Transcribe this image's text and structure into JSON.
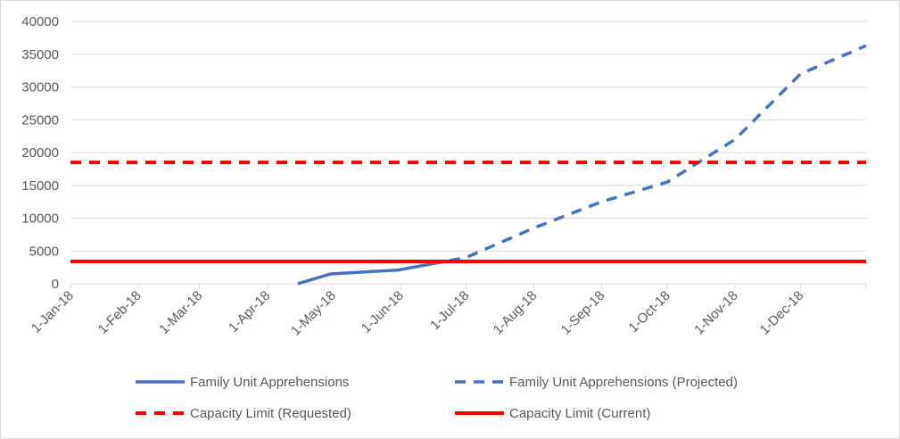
{
  "chart_data": {
    "type": "line",
    "title": "",
    "xlabel": "",
    "ylabel": "",
    "ylim": [
      0,
      40000
    ],
    "yticks": [
      0,
      5000,
      10000,
      15000,
      20000,
      25000,
      30000,
      35000,
      40000
    ],
    "x_range": [
      "2018-01-01",
      "2018-12-31"
    ],
    "xticks": [
      {
        "date": "2018-01-01",
        "label": "1-Jan-18"
      },
      {
        "date": "2018-02-01",
        "label": "1-Feb-18"
      },
      {
        "date": "2018-03-01",
        "label": "1-Mar-18"
      },
      {
        "date": "2018-04-01",
        "label": "1-Apr-18"
      },
      {
        "date": "2018-05-01",
        "label": "1-May-18"
      },
      {
        "date": "2018-06-01",
        "label": "1-Jun-18"
      },
      {
        "date": "2018-07-01",
        "label": "1-Jul-18"
      },
      {
        "date": "2018-08-01",
        "label": "1-Aug-18"
      },
      {
        "date": "2018-09-01",
        "label": "1-Sep-18"
      },
      {
        "date": "2018-10-01",
        "label": "1-Oct-18"
      },
      {
        "date": "2018-11-01",
        "label": "1-Nov-18"
      },
      {
        "date": "2018-12-01",
        "label": "1-Dec-18"
      }
    ],
    "grid": "horizontal",
    "legend_position": "bottom",
    "series": [
      {
        "name": "Family Unit Apprehensions",
        "color": "#4472C4",
        "style": "solid",
        "points": [
          {
            "x": "2018-04-15",
            "y": 0
          },
          {
            "x": "2018-04-30",
            "y": 1500
          },
          {
            "x": "2018-05-31",
            "y": 2100
          },
          {
            "x": "2018-06-15",
            "y": 3000
          }
        ]
      },
      {
        "name": "Family Unit Apprehensions (Projected)",
        "color": "#4472C4",
        "style": "dashed",
        "points": [
          {
            "x": "2018-06-15",
            "y": 3000
          },
          {
            "x": "2018-07-01",
            "y": 4000
          },
          {
            "x": "2018-08-01",
            "y": 8500
          },
          {
            "x": "2018-09-01",
            "y": 12500
          },
          {
            "x": "2018-10-01",
            "y": 15500
          },
          {
            "x": "2018-11-01",
            "y": 22000
          },
          {
            "x": "2018-12-01",
            "y": 32000
          },
          {
            "x": "2018-12-31",
            "y": 36300
          }
        ]
      },
      {
        "name": "Capacity Limit (Requested)",
        "color": "#FF0000",
        "style": "dashed",
        "points": [
          {
            "x": "2018-01-01",
            "y": 18500
          },
          {
            "x": "2018-12-31",
            "y": 18500
          }
        ]
      },
      {
        "name": "Capacity Limit (Current)",
        "color": "#FF0000",
        "style": "solid",
        "points": [
          {
            "x": "2018-01-01",
            "y": 3400
          },
          {
            "x": "2018-12-31",
            "y": 3400
          }
        ]
      }
    ]
  }
}
